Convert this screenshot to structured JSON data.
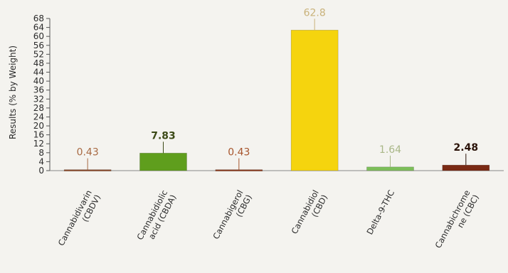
{
  "chart_data": {
    "type": "bar",
    "ylabel": "Results (% by Weight)",
    "ylim": [
      0,
      68
    ],
    "yticks": [
      0,
      4,
      8,
      12,
      16,
      20,
      24,
      28,
      32,
      36,
      40,
      44,
      48,
      52,
      56,
      60,
      64,
      68
    ],
    "grid": false,
    "categories": [
      [
        "Cannabidivarin",
        "(CBDV)"
      ],
      [
        "Cannabidiolic",
        "acid (CBDA)"
      ],
      [
        "Cannabigerol",
        "(CBG)"
      ],
      [
        "Cannabidiol",
        "(CBD)"
      ],
      [
        "Delta-9-THC",
        ""
      ],
      [
        "Cannabichrome",
        "ne (CBC)"
      ]
    ],
    "values": [
      0.43,
      7.83,
      0.43,
      62.8,
      1.64,
      2.48
    ],
    "labels": [
      "0.43",
      "7.83",
      "0.43",
      "62.8",
      "1.64",
      "2.48"
    ],
    "colors": [
      "#8b4a2b",
      "#5f9e1d",
      "#8b3a1e",
      "#f5d40e",
      "#7dbf5a",
      "#7a2a14"
    ],
    "label_colors": [
      "#a86a43",
      "#3c4a17",
      "#a7552c",
      "#c9b27a",
      "#a9b787",
      "#2a1208"
    ]
  }
}
